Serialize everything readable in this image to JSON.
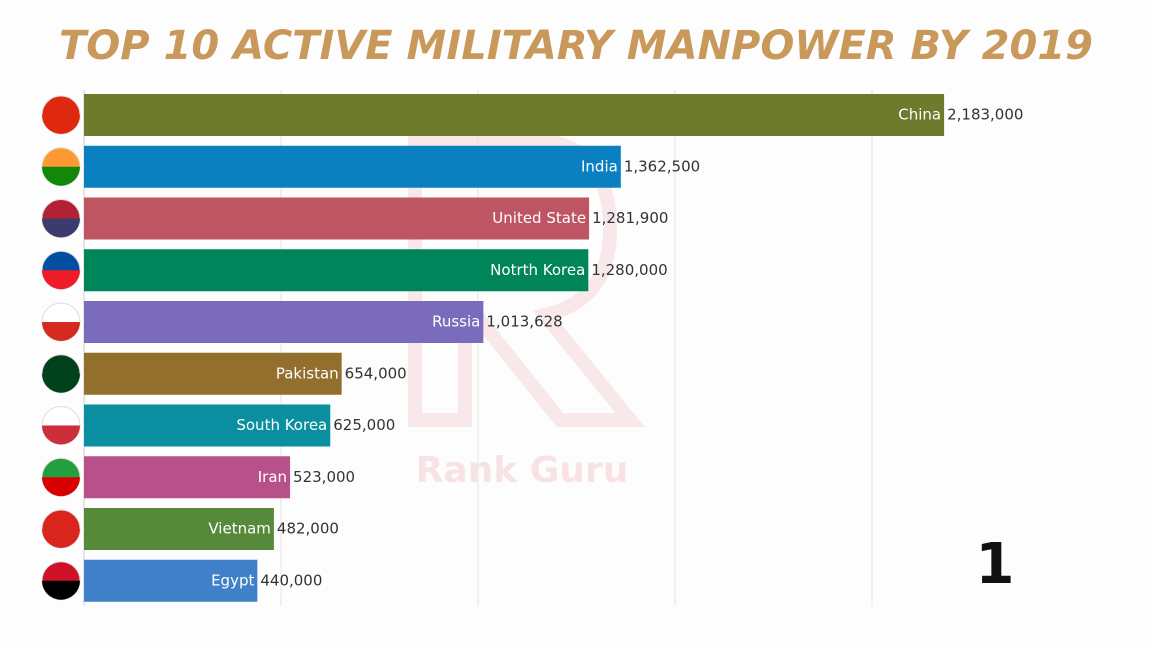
{
  "chart_data": {
    "type": "bar",
    "orientation": "horizontal",
    "title": "TOP 10 ACTIVE MILITARY MANPOWER BY 2019",
    "watermark": "Rank Guru",
    "counter": "1",
    "categories": [
      "China",
      "India",
      "United State",
      "Notrth Korea",
      "Russia",
      "Pakistan",
      "South Korea",
      "Iran",
      "Vietnam",
      "Egypt"
    ],
    "values": [
      2183000,
      1362500,
      1281900,
      1280000,
      1013628,
      654000,
      625000,
      523000,
      482000,
      440000
    ],
    "value_labels": [
      "2,183,000",
      "1,362,500",
      "1,281,900",
      "1,280,000",
      "1,013,628",
      "654,000",
      "625,000",
      "523,000",
      "482,000",
      "440,000"
    ],
    "colors": [
      "#6e7a2c",
      "#0a80c0",
      "#bd5562",
      "#00845a",
      "#7b6bbd",
      "#926f2c",
      "#0a8fa0",
      "#b8508a",
      "#568a3a",
      "#3f80c8"
    ],
    "xlim": [
      0,
      2500000
    ],
    "xticks": [
      500000,
      1000000,
      1500000,
      2000000
    ],
    "grid": true
  }
}
